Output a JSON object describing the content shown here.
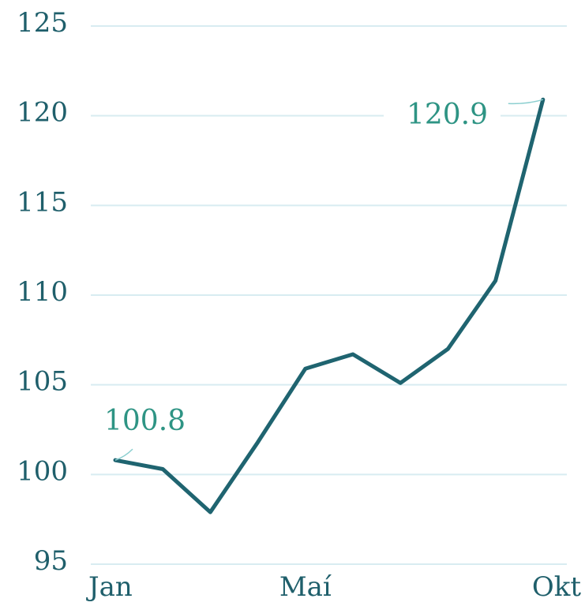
{
  "chart_data": {
    "type": "line",
    "categories": [
      "Jan",
      null,
      null,
      null,
      "Maí",
      null,
      null,
      null,
      null,
      "Okt"
    ],
    "series": [
      {
        "color": "#1f6470",
        "values": [
          100.8,
          100.3,
          97.9,
          101.8,
          105.9,
          106.7,
          105.1,
          107.0,
          110.8,
          120.9
        ]
      }
    ],
    "ylim": [
      95,
      125
    ],
    "yticks": [
      95,
      100,
      105,
      110,
      115,
      120,
      125
    ],
    "grid": true
  }
}
